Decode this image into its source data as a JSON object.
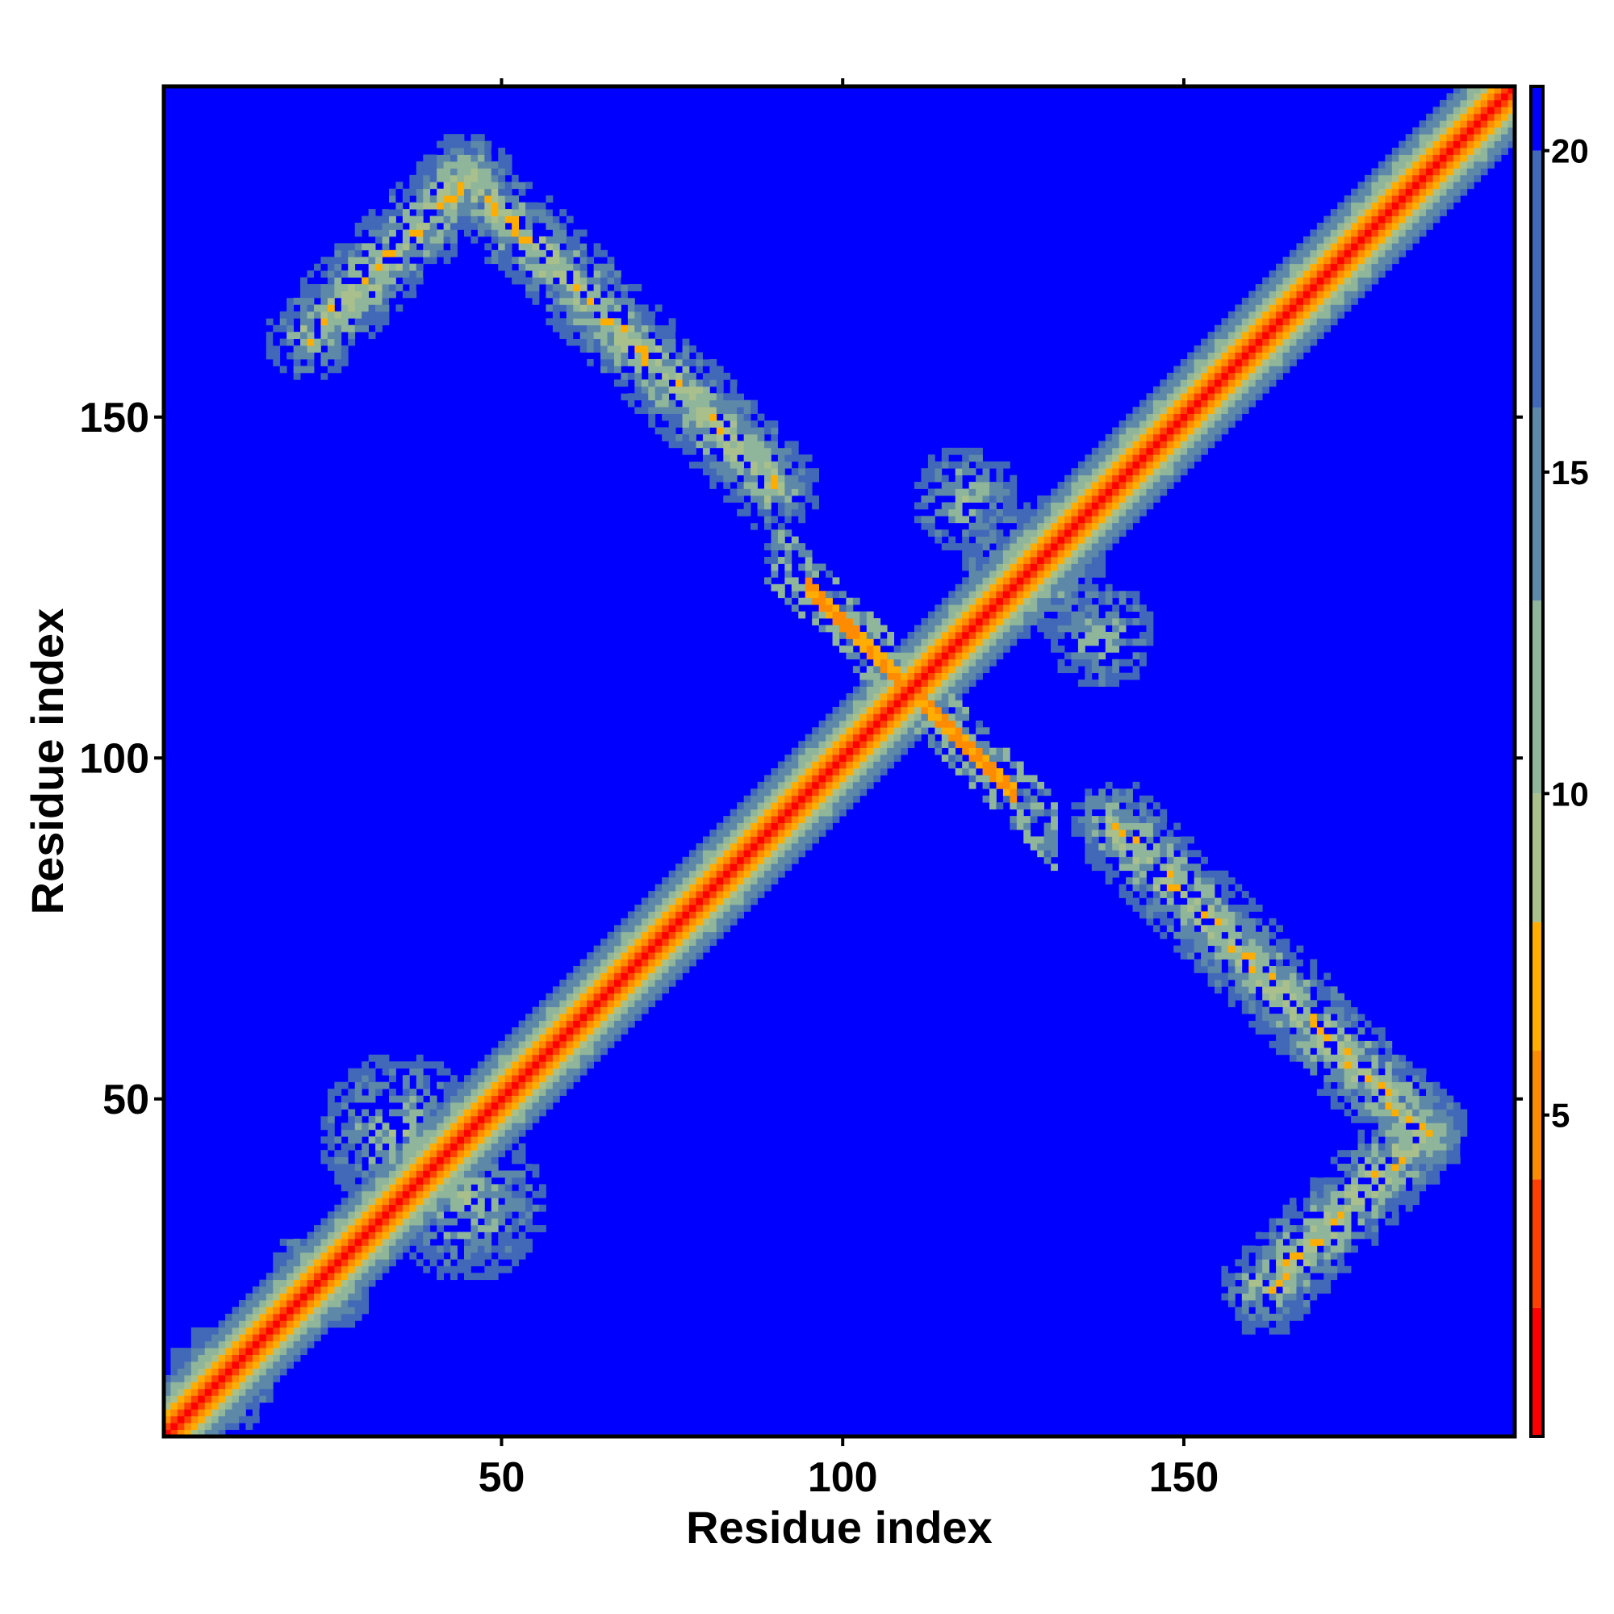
{
  "chart_data": {
    "type": "heatmap",
    "title": "",
    "xlabel": "Residue index",
    "ylabel": "Residue index",
    "x_range": [
      1,
      198
    ],
    "y_range": [
      1,
      198
    ],
    "x_ticks": [
      50,
      100,
      150
    ],
    "y_ticks": [
      50,
      100,
      150
    ],
    "colorbar": {
      "range": [
        0,
        21
      ],
      "ticks": [
        5,
        10,
        15,
        20
      ],
      "placement": "right",
      "colors": [
        "#ff0000",
        "#ff4000",
        "#ff8c00",
        "#ffad00",
        "#a9c08c",
        "#8fb59a",
        "#5e88a8",
        "#4169b8",
        "#0000ff"
      ],
      "breakpoints": [
        0,
        2,
        4,
        6,
        8,
        10,
        13,
        16,
        20
      ]
    },
    "background_value": 21,
    "description_of_features": [
      {
        "feature": "main_diagonal",
        "x_start": 1,
        "x_end": 198,
        "band_halfwidth": 8
      },
      {
        "feature": "cross_contact_upper_left",
        "from": [
          22,
          160
        ],
        "to": [
          90,
          140
        ],
        "via": [
          50,
          182
        ]
      },
      {
        "feature": "cross_contact_lower_right",
        "from": [
          140,
          90
        ],
        "to": [
          182,
          50
        ],
        "via": [
          160,
          22
        ]
      },
      {
        "feature": "local_contact_low",
        "center": [
          35,
          45
        ],
        "spread": 12
      },
      {
        "feature": "local_contact_high",
        "center": [
          128,
          128
        ],
        "spread": 10
      },
      {
        "feature": "x_cross_at",
        "center": [
          110,
          110
        ],
        "arm_length": 14
      }
    ]
  }
}
